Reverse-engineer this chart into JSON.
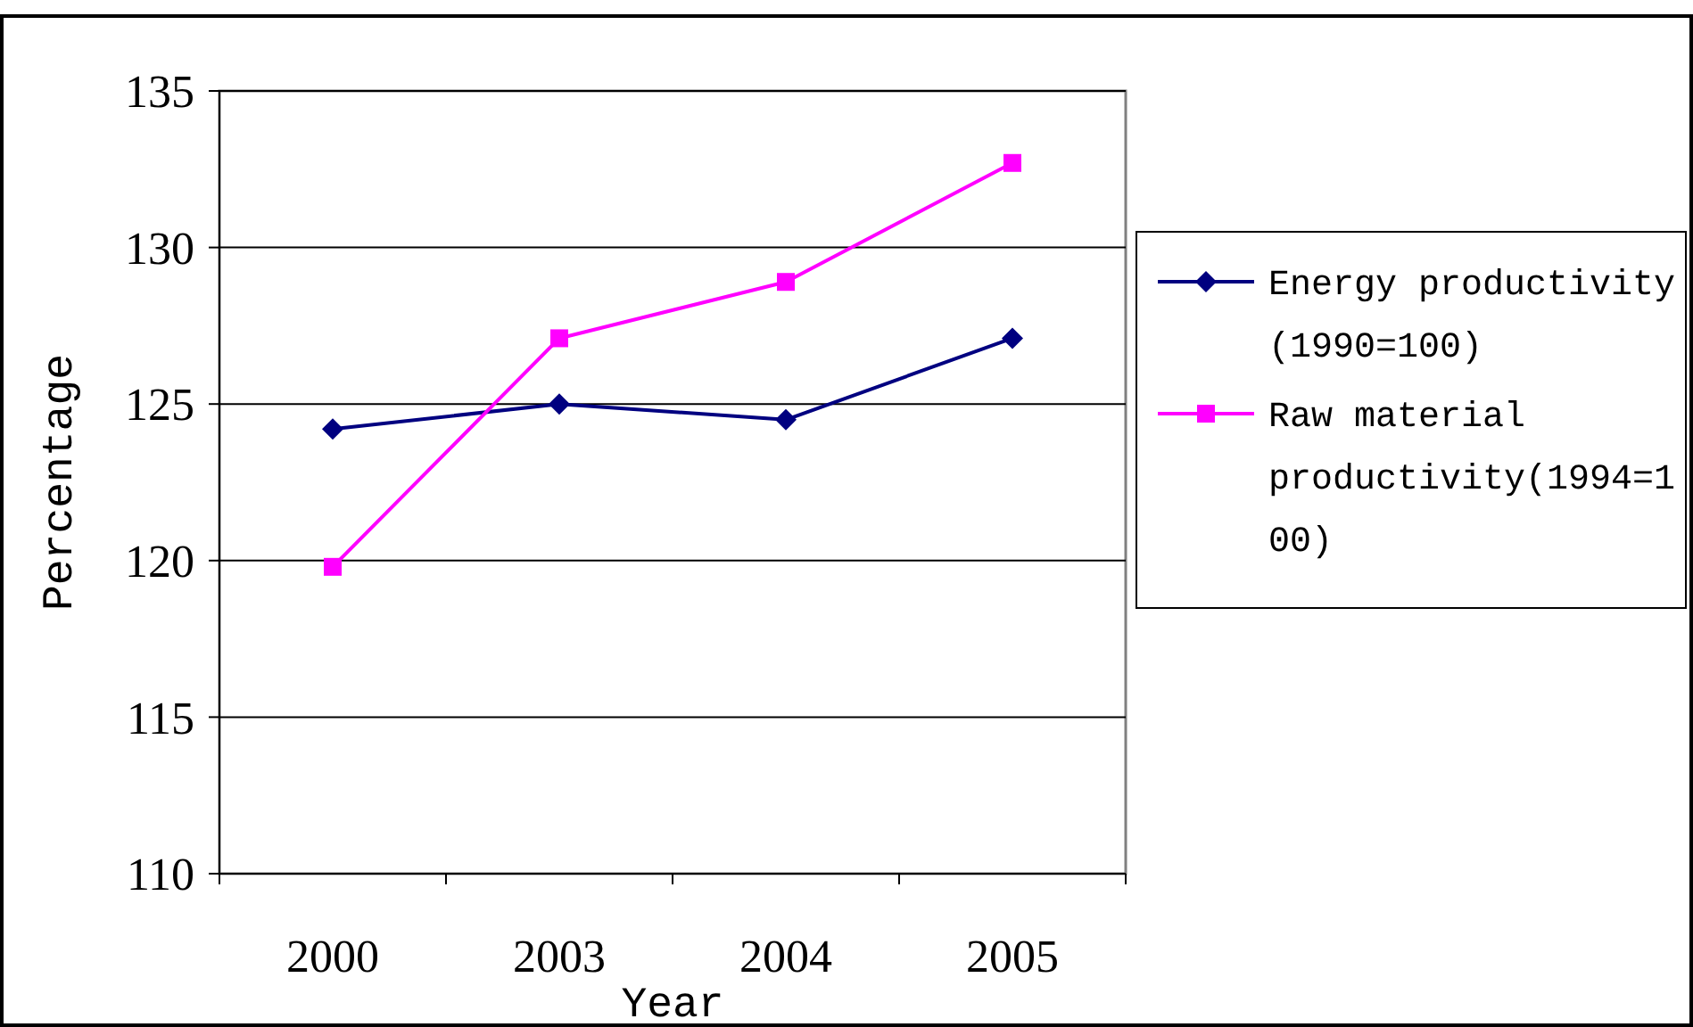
{
  "chart_data": {
    "type": "line",
    "xlabel": "Year",
    "ylabel": "Percentage",
    "categories": [
      "2000",
      "2003",
      "2004",
      "2005"
    ],
    "series": [
      {
        "name": "Energy productivity (1990=100)",
        "color": "#000080",
        "marker": "diamond",
        "values": [
          124.2,
          125.0,
          124.5,
          127.1
        ]
      },
      {
        "name": "Raw material productivity(1994=100)",
        "color": "#ff00ff",
        "marker": "square",
        "values": [
          119.8,
          127.1,
          128.9,
          132.7
        ]
      }
    ],
    "ylim": [
      110,
      135
    ],
    "yticks": [
      110,
      115,
      120,
      125,
      130,
      135
    ],
    "grid": "y",
    "legend": "right"
  }
}
